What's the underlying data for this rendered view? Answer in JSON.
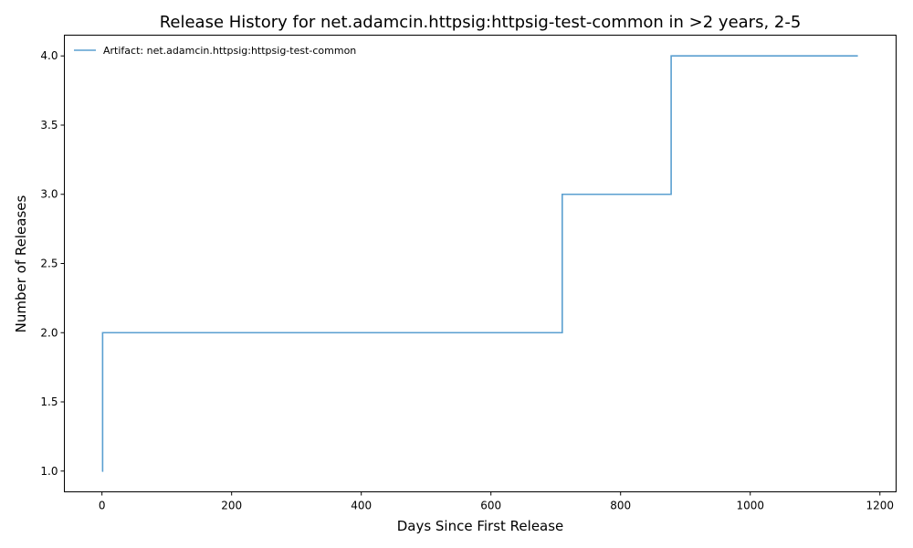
{
  "chart_data": {
    "type": "line",
    "style": "step",
    "title": "Release History for net.adamcin.httpsig:httpsig-test-common in >2 years, 2-5",
    "xlabel": "Days Since First Release",
    "ylabel": "Number of Releases",
    "xlim": [
      -58,
      1225
    ],
    "ylim": [
      0.85,
      4.15
    ],
    "x_ticks": [
      0,
      200,
      400,
      600,
      800,
      1000,
      1200
    ],
    "y_ticks": [
      1.0,
      1.5,
      2.0,
      2.5,
      3.0,
      3.5,
      4.0
    ],
    "grid": false,
    "legend_position": "top-left",
    "series": [
      {
        "name": "Artifact: net.adamcin.httpsig:httpsig-test-common",
        "color": "#5a9fd0",
        "x": [
          0,
          1,
          710,
          878,
          1166
        ],
        "y": [
          1,
          2,
          3,
          4,
          4
        ]
      }
    ]
  }
}
